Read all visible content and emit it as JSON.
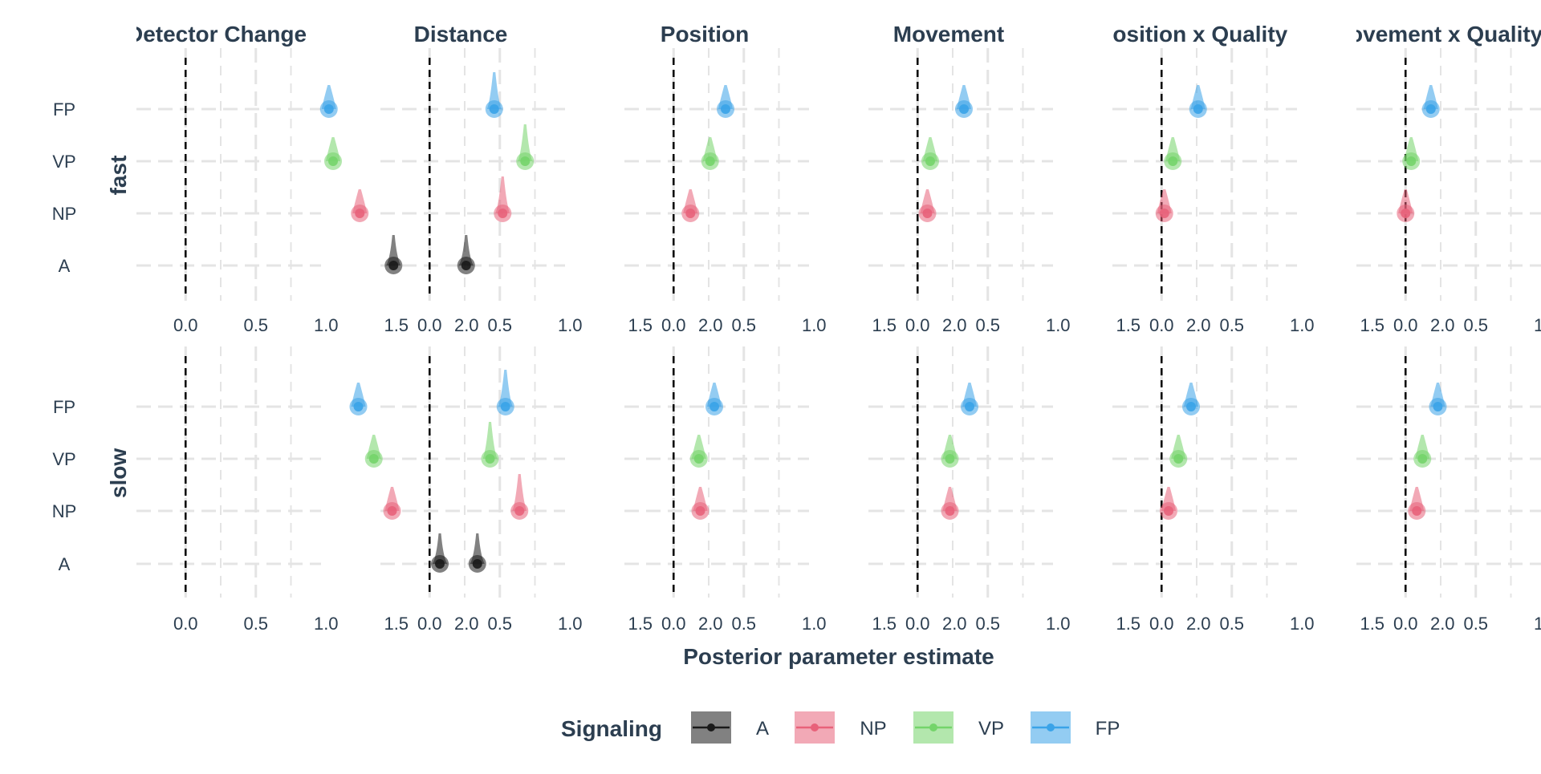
{
  "chart_data": {
    "type": "scatter",
    "panel_titles": [
      "Detector Change",
      "Distance",
      "Position",
      "Movement",
      "Position x Quality",
      "Movement x Quality"
    ],
    "row_labels": [
      "fast",
      "slow"
    ],
    "categories": [
      "FP",
      "VP",
      "NP",
      "A"
    ],
    "x_ticks": [
      "0.0",
      "0.5",
      "1.0",
      "1.5",
      "2.0"
    ],
    "xlim": [
      -0.35,
      2.15
    ],
    "reference_line_x": 0,
    "xlabel": "Posterior parameter estimate",
    "ylabel": "",
    "grid": true,
    "legend": {
      "title": "Signaling",
      "position": "bottom",
      "entries": [
        "A",
        "NP",
        "VP",
        "FP"
      ]
    },
    "colors": {
      "A": "#1a1a1a",
      "NP": "#e8627a",
      "VP": "#74d46a",
      "FP": "#3aa3e8"
    },
    "series": [
      {
        "name": "A",
        "values": [
          [
            1.48,
            0.26,
            null,
            null,
            null,
            null
          ],
          [
            1.81,
            0.34,
            null,
            null,
            null,
            null
          ]
        ]
      },
      {
        "name": "NP",
        "values": [
          [
            1.24,
            0.52,
            0.12,
            0.07,
            0.02,
            0.0
          ],
          [
            1.47,
            0.64,
            0.19,
            0.23,
            0.05,
            0.08
          ]
        ]
      },
      {
        "name": "VP",
        "values": [
          [
            1.05,
            0.68,
            0.26,
            0.09,
            0.08,
            0.04
          ],
          [
            1.34,
            0.43,
            0.18,
            0.23,
            0.12,
            0.12
          ]
        ]
      },
      {
        "name": "FP",
        "values": [
          [
            1.02,
            0.46,
            0.37,
            0.33,
            0.26,
            0.18
          ],
          [
            1.23,
            0.54,
            0.29,
            0.37,
            0.21,
            0.23
          ]
        ]
      }
    ]
  }
}
